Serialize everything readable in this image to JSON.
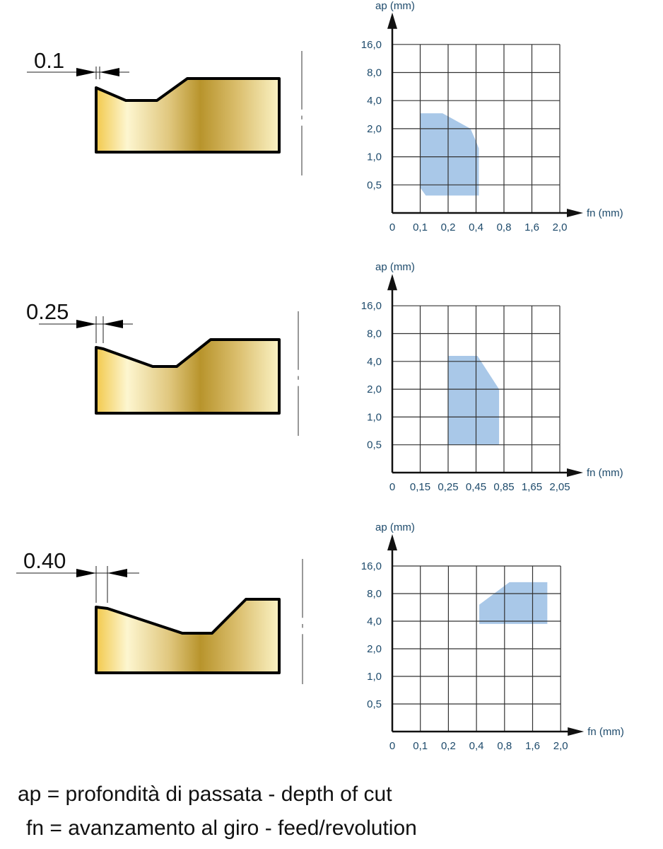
{
  "inserts": [
    {
      "dimension_label": "0.1"
    },
    {
      "dimension_label": "0.25"
    },
    {
      "dimension_label": "0.40"
    }
  ],
  "colors": {
    "region_fill": "#a9c8e8",
    "label_text": "#1d4a6b",
    "grid": "#333333",
    "insert_gradient": [
      "#f2c94c",
      "#fdf6d0",
      "#e0c77e",
      "#b8942c",
      "#dcc070",
      "#faf2c4"
    ]
  },
  "chart_data": [
    {
      "type": "area",
      "xlabel": "fn (mm)",
      "ylabel": "ap (mm)",
      "x_ticks": [
        "0",
        "0,1",
        "0,2",
        "0,4",
        "0,8",
        "1,6",
        "2,0"
      ],
      "x_values": [
        0,
        0.1,
        0.2,
        0.4,
        0.8,
        1.6,
        2.0
      ],
      "y_ticks": [
        "0,5",
        "1,0",
        "2,0",
        "4,0",
        "8,0",
        "16,0"
      ],
      "y_values": [
        0,
        0.5,
        1.0,
        2.0,
        4.0,
        8.0,
        16.0
      ],
      "grid": true,
      "region": [
        [
          0.1,
          3.1
        ],
        [
          0.18,
          3.1
        ],
        [
          0.36,
          2.0
        ],
        [
          0.4,
          1.55
        ],
        [
          0.44,
          1.3
        ],
        [
          0.44,
          0.31
        ],
        [
          0.12,
          0.31
        ],
        [
          0.1,
          0.45
        ]
      ]
    },
    {
      "type": "area",
      "xlabel": "fn (mm)",
      "ylabel": "ap (mm)",
      "x_ticks": [
        "0",
        "0,15",
        "0,25",
        "0,45",
        "0,85",
        "1,65",
        "2,05"
      ],
      "x_values": [
        0,
        0.15,
        0.25,
        0.45,
        0.85,
        1.65,
        2.05
      ],
      "y_ticks": [
        "0,5",
        "1,0",
        "2,0",
        "4,0",
        "8,0",
        "16,0"
      ],
      "y_values": [
        0,
        0.5,
        1.0,
        2.0,
        4.0,
        8.0,
        16.0
      ],
      "grid": true,
      "region": [
        [
          0.25,
          4.8
        ],
        [
          0.47,
          4.8
        ],
        [
          0.78,
          2.0
        ],
        [
          0.78,
          0.5
        ],
        [
          0.25,
          0.5
        ]
      ]
    },
    {
      "type": "area",
      "xlabel": "fn (mm)",
      "ylabel": "ap (mm)",
      "x_ticks": [
        "0",
        "0,1",
        "0,2",
        "0,4",
        "0,8",
        "1,6",
        "2,0"
      ],
      "x_values": [
        0,
        0.1,
        0.2,
        0.4,
        0.8,
        1.6,
        2.0
      ],
      "y_ticks": [
        "0,5",
        "1,0",
        "2,0",
        "4,0",
        "8,0",
        "16,0"
      ],
      "y_values": [
        0,
        0.5,
        1.0,
        2.0,
        4.0,
        8.0,
        16.0
      ],
      "grid": true,
      "region": [
        [
          0.44,
          6.4
        ],
        [
          0.94,
          11.3
        ],
        [
          1.81,
          11.3
        ],
        [
          1.81,
          3.8
        ],
        [
          0.44,
          3.8
        ]
      ]
    }
  ],
  "legend": {
    "line1": "ap = profondità di passata - depth of cut",
    "line2": "fn = avanzamento al giro - feed/revolution"
  }
}
